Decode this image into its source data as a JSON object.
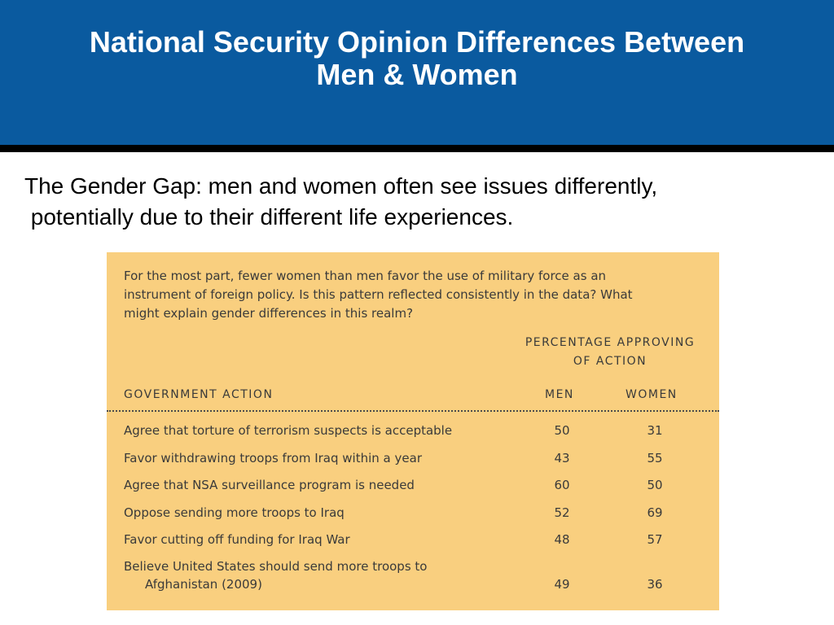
{
  "slide": {
    "title": "National Security Opinion Differences Between Men & Women",
    "title_lines": [
      "National Security Opinion Differences Between",
      "Men & Women"
    ],
    "subtitle_lines": [
      "The Gender Gap: men and women often see issues differently,",
      " potentially due to their different life experiences."
    ],
    "colors": {
      "banner": "#0a5a9f",
      "rule": "#000000",
      "panel": "#f9cf7f"
    }
  },
  "panel": {
    "question_lines": [
      "For the most part, fewer women than men favor the use of military force as an",
      "instrument of foreign policy. Is this pattern reflected consistently in the data? What",
      "might explain gender differences in this realm?"
    ],
    "pct_header_lines": [
      "PERCENTAGE APPROVING",
      "OF ACTION"
    ],
    "headers": {
      "action": "GOVERNMENT ACTION",
      "men": "MEN",
      "women": "WOMEN"
    },
    "rows": [
      {
        "label": "Agree that torture of terrorism suspects is acceptable",
        "men": "50",
        "women": "31"
      },
      {
        "label": "Favor withdrawing troops from Iraq within a year",
        "men": "43",
        "women": "55"
      },
      {
        "label": "Agree that NSA surveillance program is needed",
        "men": "60",
        "women": "50"
      },
      {
        "label": "Oppose sending more troops to Iraq",
        "men": "52",
        "women": "69"
      },
      {
        "label": "Favor cutting off funding for Iraq War",
        "men": "48",
        "women": "57"
      },
      {
        "label_line1": "Believe United States should send more troops to",
        "label_line2": "Afghanistan (2009)",
        "men": "49",
        "women": "36"
      }
    ]
  }
}
